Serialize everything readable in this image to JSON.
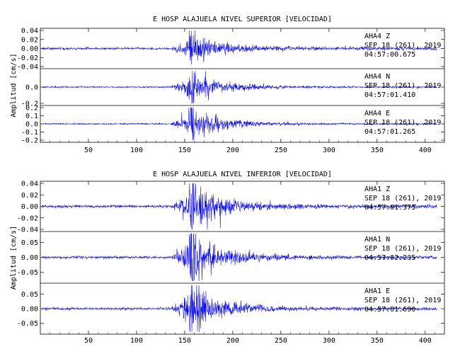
{
  "chart_data": [
    {
      "type": "line",
      "title": "E HOSP ALAJUELA NIVEL SUPERIOR [VELOCIDAD]",
      "ylabel": "Amplitud [cm/s]",
      "xlabel": "",
      "x_range": [
        0,
        420
      ],
      "x_ticks": [
        "50",
        "100",
        "150",
        "200",
        "250",
        "300",
        "350",
        "400"
      ],
      "color": "#0000ff",
      "envelope": {
        "onset": 135,
        "peak": 157,
        "decay_end": 330
      },
      "panels": [
        {
          "name": "AHA4 Z",
          "station": "AHA4",
          "component": "Z",
          "date": "SEP 18 (261), 2019",
          "time": "04:57:00.675",
          "ylim": [
            -0.04,
            0.04
          ],
          "yticks": [
            "0.04",
            "0.02",
            "0.00",
            "-0.02",
            "-0.04"
          ],
          "peak": 0.03,
          "noise": 0.0013
        },
        {
          "name": "AHA4 N",
          "station": "AHA4",
          "component": "N",
          "date": "SEP 18 (261), 2019",
          "time": "04:57:01.410",
          "ylim": [
            -0.2,
            0.2
          ],
          "yticks": [
            "0.0",
            "-0.2"
          ],
          "peak": 0.16,
          "noise": 0.004
        },
        {
          "name": "AHA4 E",
          "station": "AHA4",
          "component": "E",
          "date": "SEP 18 (261), 2019",
          "time": "04:57:01.265",
          "ylim": [
            -0.2,
            0.2
          ],
          "yticks": [
            "0.2",
            "0.1",
            "0.0",
            "-0.1",
            "-0.2"
          ],
          "peak": 0.16,
          "noise": 0.004
        }
      ]
    },
    {
      "type": "line",
      "title": "E HOSP ALAJUELA NIVEL INFERIOR [VELOCIDAD]",
      "ylabel": "Amplitud [cm/s]",
      "xlabel": "",
      "x_range": [
        0,
        420
      ],
      "x_ticks": [
        "50",
        "100",
        "150",
        "200",
        "250",
        "300",
        "350",
        "400"
      ],
      "color": "#0000ff",
      "envelope": {
        "onset": 135,
        "peak": 157,
        "decay_end": 330
      },
      "panels": [
        {
          "name": "AHA1 Z",
          "station": "AHA1",
          "component": "Z",
          "date": "SEP 18 (261), 2019",
          "time": "04:57:01.375",
          "ylim": [
            -0.04,
            0.04
          ],
          "yticks": [
            "0.04",
            "0.02",
            "0.00",
            "-0.02",
            "-0.04"
          ],
          "peak": 0.035,
          "noise": 0.0012
        },
        {
          "name": "AHA1 N",
          "station": "AHA1",
          "component": "N",
          "date": "SEP 18 (261), 2019",
          "time": "04:57:02.235",
          "ylim": [
            -0.08,
            0.08
          ],
          "yticks": [
            "0.05",
            "0.00",
            "-0.05"
          ],
          "peak": 0.072,
          "noise": 0.002
        },
        {
          "name": "AHA1 E",
          "station": "AHA1",
          "component": "E",
          "date": "SEP 18 (261), 2019",
          "time": "04:57:01.690",
          "ylim": [
            -0.08,
            0.08
          ],
          "yticks": [
            "0.05",
            "0.00",
            "-0.05"
          ],
          "peak": 0.07,
          "noise": 0.002
        }
      ]
    }
  ]
}
